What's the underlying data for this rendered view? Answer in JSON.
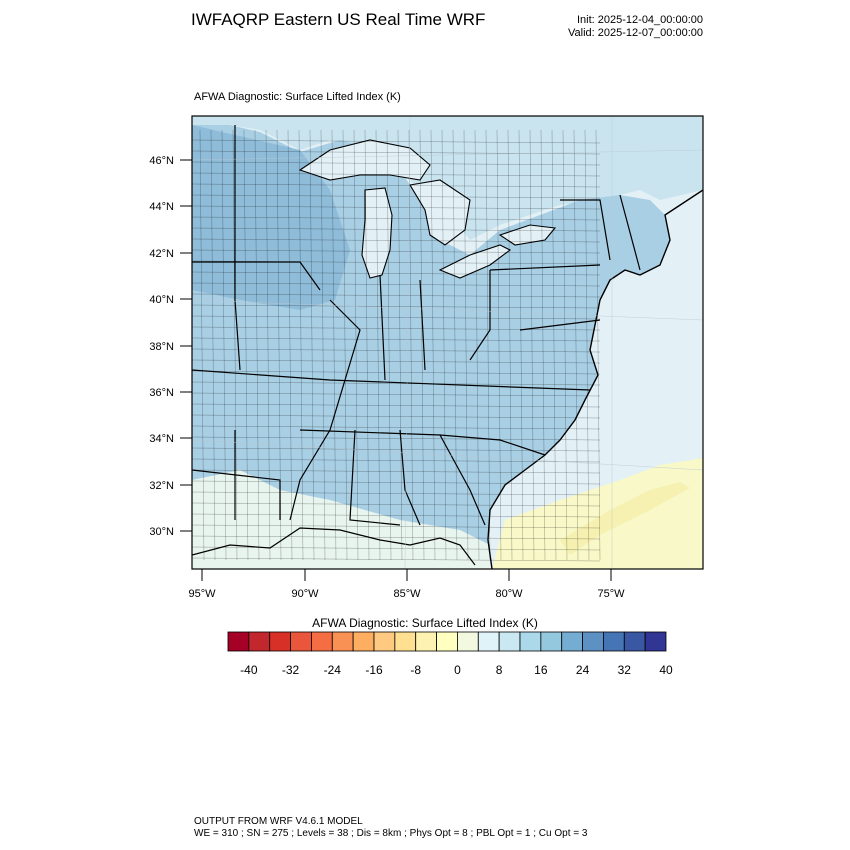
{
  "header": {
    "title": "IWFAQRP Eastern US Real Time WRF",
    "init": "Init: 2025-12-04_00:00:00",
    "valid": "Valid: 2025-12-07_00:00:00"
  },
  "map": {
    "subtitle": "AFWA Diagnostic: Surface Lifted Index   (K)",
    "lat_labels": [
      "46°N",
      "44°N",
      "42°N",
      "40°N",
      "38°N",
      "36°N",
      "34°N",
      "32°N",
      "30°N"
    ],
    "lon_labels": [
      "95°W",
      "90°W",
      "85°W",
      "80°W",
      "75°W"
    ],
    "colors": {
      "water_light": "#e3f1f6",
      "land_blue": "#a9cfe4",
      "land_mid": "#c9e4ef",
      "land_pale": "#e8f4ee",
      "land_yellow": "#f7f8d8",
      "ocean_yellow": "#f8f8c9",
      "ocean_deep_yellow": "#f6f1b0",
      "coast": "#000000"
    }
  },
  "colorbar": {
    "title": "AFWA Diagnostic: Surface Lifted Index  (K)",
    "colors": [
      "#a50026",
      "#c1272d",
      "#d73027",
      "#e9563b",
      "#f46d43",
      "#f99154",
      "#fdae61",
      "#fec980",
      "#fee090",
      "#fef2b0",
      "#ffffbf",
      "#f2f9df",
      "#e0f3f8",
      "#c9e8f1",
      "#abd9e9",
      "#94c8df",
      "#74add1",
      "#5d91c3",
      "#4575b4",
      "#3a57a4",
      "#313695"
    ],
    "tick_labels": [
      "-40",
      "-32",
      "-24",
      "-16",
      "-8",
      "0",
      "8",
      "16",
      "24",
      "32",
      "40"
    ]
  },
  "footer": {
    "line1": "OUTPUT FROM WRF V4.6.1 MODEL",
    "line2": "WE = 310 ; SN = 275 ; Levels = 38 ; Dis = 8km ; Phys Opt = 8 ; PBL Opt = 1 ; Cu Opt = 3"
  }
}
